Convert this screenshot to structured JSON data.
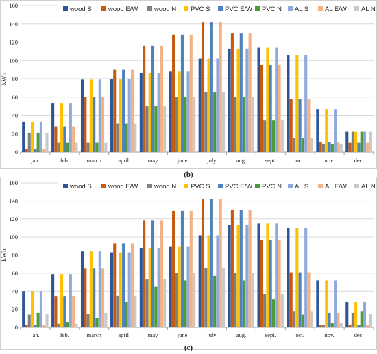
{
  "chart_data": [
    {
      "type": "bar",
      "caption": "(b)",
      "ylabel": "kWh",
      "xlabel": "",
      "ylim": [
        0,
        160
      ],
      "yticks": [
        0,
        20,
        40,
        60,
        80,
        100,
        120,
        140,
        160
      ],
      "grid": true,
      "legend": "top",
      "categories": [
        "jan.",
        "feb.",
        "march",
        "april",
        "may",
        "june",
        "july",
        "aug.",
        "sept.",
        "oct.",
        "nov.",
        "dec."
      ],
      "series": [
        {
          "name": "wood S",
          "color": "#2f5597",
          "values": [
            33,
            53,
            79,
            80,
            86,
            88,
            102,
            113,
            114,
            106,
            47,
            22
          ]
        },
        {
          "name": "wood E/W",
          "color": "#c55a11",
          "values": [
            3,
            28,
            60,
            90,
            116,
            128,
            142,
            130,
            95,
            58,
            11,
            10
          ]
        },
        {
          "name": "wood N",
          "color": "#7f7f7f",
          "values": [
            21,
            10,
            10,
            31,
            50,
            60,
            65,
            60,
            35,
            15,
            9,
            22
          ]
        },
        {
          "name": "PVC S",
          "color": "#ffc000",
          "values": [
            33,
            53,
            79,
            80,
            86,
            88,
            102,
            113,
            114,
            106,
            47,
            22
          ]
        },
        {
          "name": "PVC E/W",
          "color": "#4f81bd",
          "values": [
            3,
            28,
            60,
            90,
            116,
            128,
            142,
            130,
            95,
            58,
            11,
            10
          ]
        },
        {
          "name": "PVC N",
          "color": "#4e9a3a",
          "values": [
            21,
            10,
            10,
            31,
            50,
            60,
            65,
            60,
            35,
            15,
            9,
            22
          ]
        },
        {
          "name": "AL S",
          "color": "#8eaadb",
          "values": [
            33,
            53,
            79,
            80,
            86,
            88,
            102,
            113,
            114,
            106,
            47,
            22
          ]
        },
        {
          "name": "AL E/W",
          "color": "#f4b183",
          "values": [
            3,
            28,
            60,
            90,
            116,
            128,
            142,
            130,
            95,
            58,
            11,
            10
          ]
        },
        {
          "name": "AL N",
          "color": "#c9c9c9",
          "values": [
            21,
            10,
            10,
            31,
            50,
            60,
            65,
            60,
            35,
            15,
            9,
            22
          ]
        }
      ]
    },
    {
      "type": "bar",
      "caption": "(c)",
      "ylabel": "kWh",
      "xlabel": "",
      "ylim": [
        0,
        160
      ],
      "yticks": [
        0,
        20,
        40,
        60,
        80,
        100,
        120,
        140,
        160
      ],
      "grid": true,
      "legend": "top",
      "categories": [
        "jan.",
        "feb.",
        "march",
        "april",
        "may",
        "june",
        "july",
        "aug.",
        "sept.",
        "oct.",
        "nov.",
        "dec."
      ],
      "series": [
        {
          "name": "wood S",
          "color": "#2f5597",
          "values": [
            40,
            59,
            84,
            83,
            88,
            89,
            102,
            113,
            115,
            110,
            52,
            28
          ]
        },
        {
          "name": "wood E/W",
          "color": "#c55a11",
          "values": [
            3,
            34,
            65,
            93,
            118,
            129,
            142,
            130,
            97,
            61,
            3,
            3
          ]
        },
        {
          "name": "wood N",
          "color": "#7f7f7f",
          "values": [
            14,
            4,
            15,
            35,
            53,
            60,
            66,
            60,
            37,
            18,
            3,
            16
          ]
        },
        {
          "name": "PVC S",
          "color": "#ffc000",
          "values": [
            40,
            59,
            84,
            83,
            88,
            89,
            102,
            113,
            115,
            110,
            52,
            28
          ]
        },
        {
          "name": "PVC E/W",
          "color": "#4f81bd",
          "values": [
            3,
            34,
            65,
            93,
            118,
            129,
            142,
            130,
            97,
            61,
            16,
            3
          ]
        },
        {
          "name": "PVC N",
          "color": "#4e9a3a",
          "values": [
            16,
            6,
            10,
            28,
            45,
            52,
            57,
            52,
            31,
            14,
            5,
            18
          ]
        },
        {
          "name": "AL S",
          "color": "#8eaadb",
          "values": [
            40,
            59,
            84,
            83,
            88,
            89,
            102,
            113,
            115,
            110,
            52,
            28
          ]
        },
        {
          "name": "AL E/W",
          "color": "#f4b183",
          "values": [
            3,
            34,
            65,
            93,
            118,
            129,
            142,
            130,
            97,
            61,
            16,
            3
          ]
        },
        {
          "name": "AL N",
          "color": "#c9c9c9",
          "values": [
            15,
            4,
            16,
            35,
            53,
            60,
            66,
            60,
            37,
            18,
            5,
            15
          ]
        }
      ]
    }
  ]
}
